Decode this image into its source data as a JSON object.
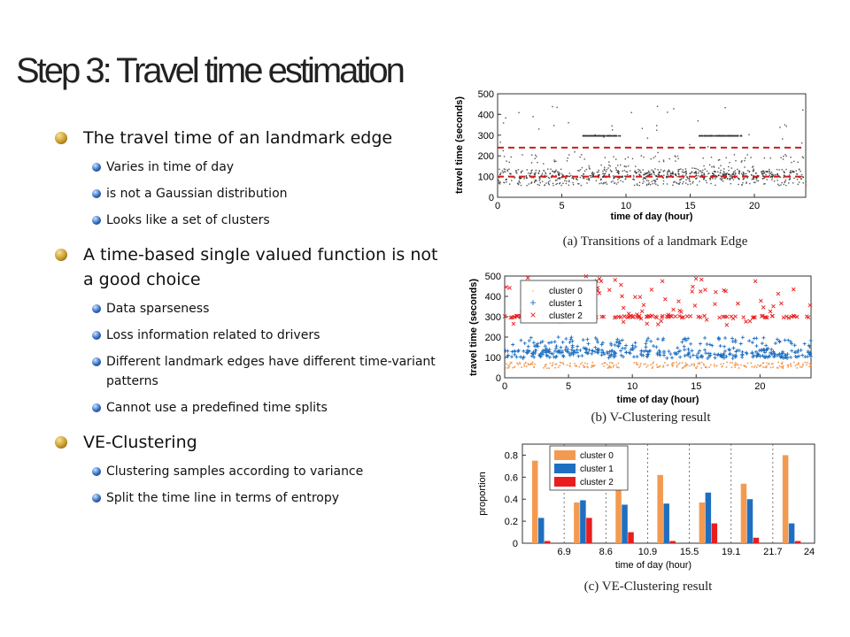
{
  "slide": {
    "title": "Step 3: Travel time estimation",
    "bullets": [
      {
        "text": "The travel time of an landmark edge",
        "sub": [
          "Varies in time of day",
          "is not a Gaussian distribution",
          "Looks like a set of clusters"
        ]
      },
      {
        "text": "A time-based single valued function is not a good choice",
        "sub": [
          "Data sparseness",
          "Loss information related to drivers",
          "Different landmark edges have different time-variant patterns",
          "Cannot  use a predefined time splits"
        ]
      },
      {
        "text": "VE-Clustering",
        "sub": [
          "Clustering samples according to variance",
          "Split the time line in terms of entropy"
        ]
      }
    ]
  },
  "colors": {
    "cluster0": "#f39a51",
    "cluster1": "#1f6fc0",
    "cluster2": "#e81e1e",
    "gray": "#555555"
  },
  "icons": {
    "level1": "gold-sphere-bullet-icon",
    "level2": "blue-sphere-bullet-icon"
  },
  "chart_data": [
    {
      "type": "scatter",
      "caption": "(a) Transitions of a landmark Edge",
      "xlabel": "time of day (hour)",
      "ylabel": "travel time (seconds)",
      "xlim": [
        0,
        24
      ],
      "ylim": [
        0,
        500
      ],
      "xticks": [
        0,
        5,
        10,
        15,
        20
      ],
      "yticks": [
        0,
        100,
        200,
        300,
        400,
        500
      ],
      "reference_lines": [
        100,
        240
      ],
      "bands": [
        {
          "x": [
            6.5,
            9.5
          ],
          "y": [
            300,
            300
          ]
        },
        {
          "x": [
            15.5,
            19.0
          ],
          "y": [
            300,
            300
          ]
        },
        {
          "x": [
            7,
            24
          ],
          "y": [
            100,
            130
          ]
        },
        {
          "x": [
            0,
            24
          ],
          "y": [
            90,
            120
          ]
        }
      ]
    },
    {
      "type": "scatter",
      "caption": "(b) V-Clustering result",
      "xlabel": "time of day (hour)",
      "ylabel": "travel time (seconds)",
      "xlim": [
        0,
        24
      ],
      "ylim": [
        0,
        500
      ],
      "xticks": [
        0,
        5,
        10,
        15,
        20
      ],
      "yticks": [
        0,
        100,
        200,
        300,
        400,
        500
      ],
      "series": [
        {
          "name": "cluster 0",
          "marker": ".",
          "y_band": [
            50,
            80
          ]
        },
        {
          "name": "cluster 1",
          "marker": "+",
          "y_band": [
            95,
            200
          ]
        },
        {
          "name": "cluster 2",
          "marker": "×",
          "y_band": [
            250,
            500
          ]
        }
      ]
    },
    {
      "type": "bar",
      "caption": "(c) VE-Clustering result",
      "xlabel": "time of day (hour)",
      "ylabel": "proportion",
      "ylim": [
        0,
        0.9
      ],
      "yticks": [
        0,
        0.2,
        0.4,
        0.6,
        0.8
      ],
      "ytick_labels": [
        "0",
        "0.2",
        "0.4",
        "0.6",
        "0.8"
      ],
      "xtick_labels": [
        "6.9",
        "8.6",
        "10.9",
        "15.5",
        "19.1",
        "21.7",
        "24"
      ],
      "series": [
        {
          "name": "cluster 0",
          "values": [
            0.75,
            0.37,
            0.5,
            0.62,
            0.37,
            0.54,
            0.8
          ]
        },
        {
          "name": "cluster 1",
          "values": [
            0.23,
            0.39,
            0.35,
            0.36,
            0.46,
            0.4,
            0.18
          ]
        },
        {
          "name": "cluster 2",
          "values": [
            0.02,
            0.23,
            0.1,
            0.02,
            0.18,
            0.05,
            0.02
          ]
        }
      ]
    }
  ]
}
